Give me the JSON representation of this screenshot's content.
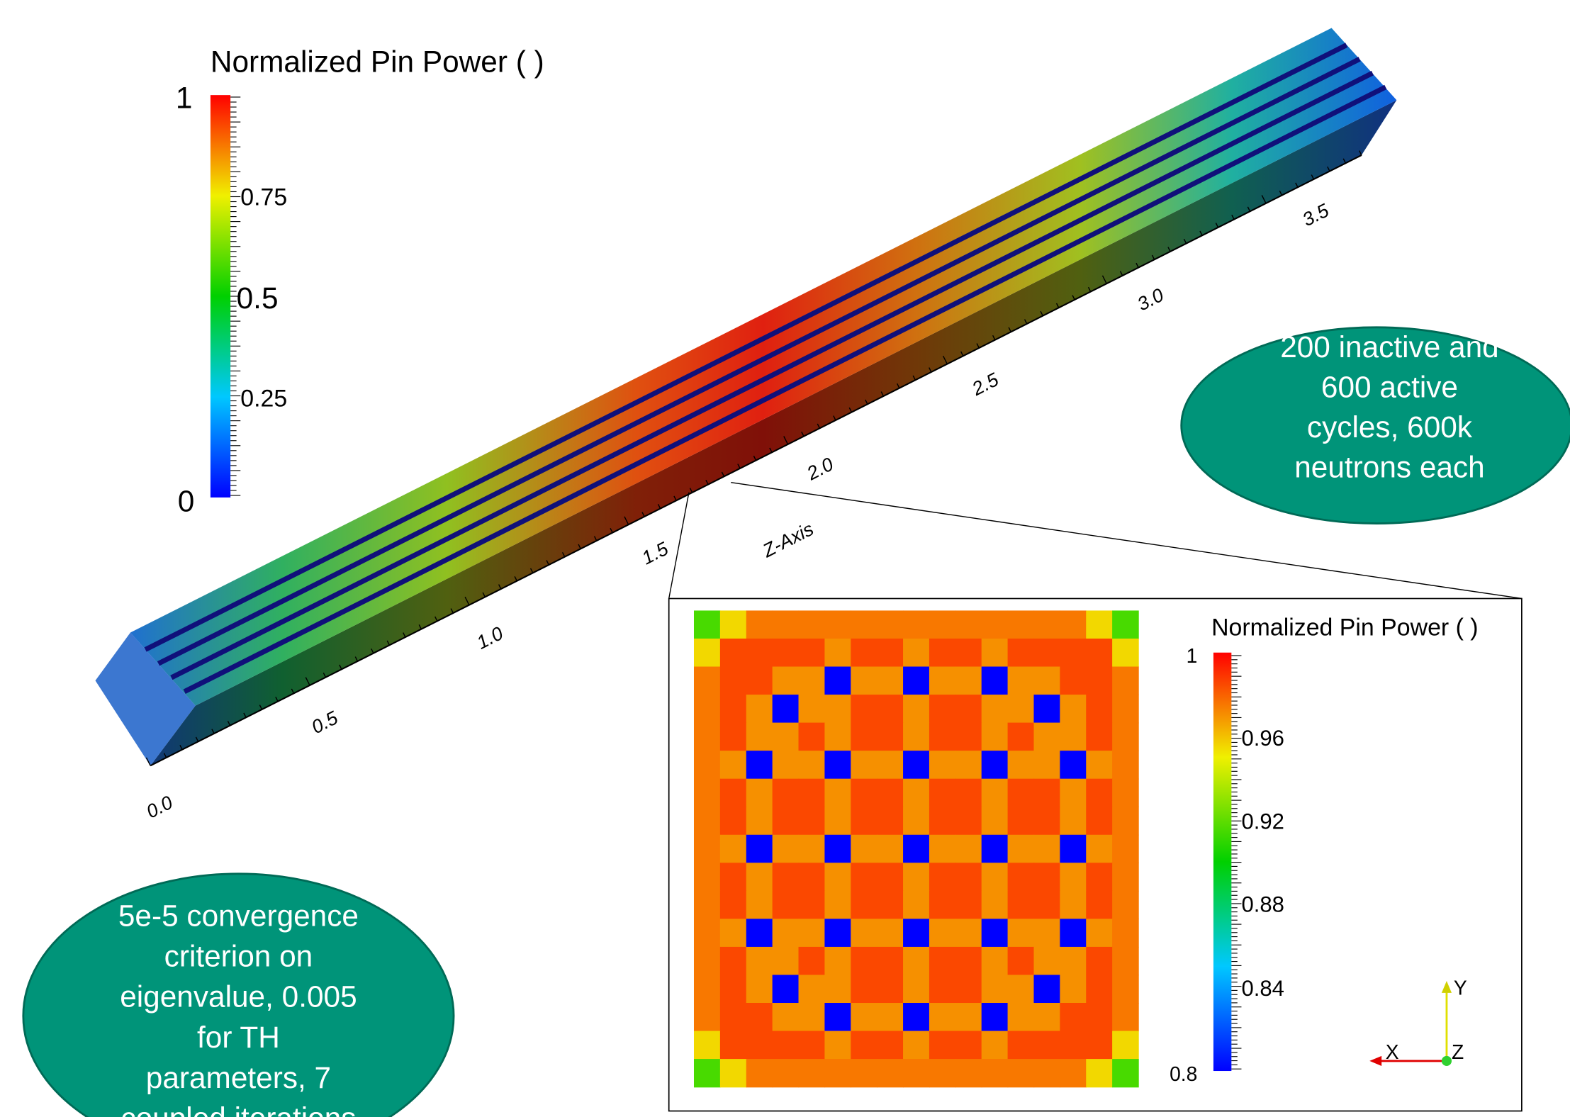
{
  "main_view": {
    "colorbar_title": "Normalized Pin Power ( )",
    "colorbar_labels": [
      "1",
      "0.75",
      "0.5",
      "0.25",
      "0"
    ],
    "axis_title": "Z-Axis",
    "axis_labels": [
      "0.0",
      "0.5",
      "1.0",
      "1.5",
      "2.0",
      "2.5",
      "3.0",
      "3.5"
    ]
  },
  "inset": {
    "colorbar_title": "Normalized Pin Power ( )",
    "colorbar_labels": [
      "1",
      "0.96",
      "0.92",
      "0.88",
      "0.84",
      "0.8"
    ],
    "axes_labels": [
      "Y",
      "X",
      "Z"
    ],
    "pin_map": [
      [
        0.915,
        0.955,
        0.975,
        0.975,
        0.975,
        0.975,
        0.975,
        0.975,
        0.975,
        0.975,
        0.975,
        0.975,
        0.975,
        0.975,
        0.975,
        0.955,
        0.915
      ],
      [
        0.955,
        0.985,
        0.985,
        0.985,
        0.985,
        0.97,
        0.985,
        0.985,
        0.97,
        0.985,
        0.985,
        0.97,
        0.985,
        0.985,
        0.985,
        0.985,
        0.955
      ],
      [
        0.975,
        0.985,
        0.985,
        0.97,
        0.97,
        0.8,
        0.97,
        0.97,
        0.8,
        0.97,
        0.97,
        0.8,
        0.97,
        0.97,
        0.985,
        0.985,
        0.975
      ],
      [
        0.975,
        0.985,
        0.97,
        0.8,
        0.97,
        0.97,
        0.985,
        0.985,
        0.97,
        0.985,
        0.985,
        0.97,
        0.97,
        0.8,
        0.97,
        0.985,
        0.975
      ],
      [
        0.975,
        0.985,
        0.97,
        0.97,
        0.985,
        0.97,
        0.985,
        0.985,
        0.97,
        0.985,
        0.985,
        0.97,
        0.985,
        0.97,
        0.97,
        0.985,
        0.975
      ],
      [
        0.975,
        0.97,
        0.8,
        0.97,
        0.97,
        0.8,
        0.97,
        0.97,
        0.8,
        0.97,
        0.97,
        0.8,
        0.97,
        0.97,
        0.8,
        0.97,
        0.975
      ],
      [
        0.975,
        0.985,
        0.97,
        0.985,
        0.985,
        0.97,
        0.985,
        0.985,
        0.97,
        0.985,
        0.985,
        0.97,
        0.985,
        0.985,
        0.97,
        0.985,
        0.975
      ],
      [
        0.975,
        0.985,
        0.97,
        0.985,
        0.985,
        0.97,
        0.985,
        0.985,
        0.97,
        0.985,
        0.985,
        0.97,
        0.985,
        0.985,
        0.97,
        0.985,
        0.975
      ],
      [
        0.975,
        0.97,
        0.8,
        0.97,
        0.97,
        0.8,
        0.97,
        0.97,
        0.8,
        0.97,
        0.97,
        0.8,
        0.97,
        0.97,
        0.8,
        0.97,
        0.975
      ],
      [
        0.975,
        0.985,
        0.97,
        0.985,
        0.985,
        0.97,
        0.985,
        0.985,
        0.97,
        0.985,
        0.985,
        0.97,
        0.985,
        0.985,
        0.97,
        0.985,
        0.975
      ],
      [
        0.975,
        0.985,
        0.97,
        0.985,
        0.985,
        0.97,
        0.985,
        0.985,
        0.97,
        0.985,
        0.985,
        0.97,
        0.985,
        0.985,
        0.97,
        0.985,
        0.975
      ],
      [
        0.975,
        0.97,
        0.8,
        0.97,
        0.97,
        0.8,
        0.97,
        0.97,
        0.8,
        0.97,
        0.97,
        0.8,
        0.97,
        0.97,
        0.8,
        0.97,
        0.975
      ],
      [
        0.975,
        0.985,
        0.97,
        0.97,
        0.985,
        0.97,
        0.985,
        0.985,
        0.97,
        0.985,
        0.985,
        0.97,
        0.985,
        0.97,
        0.97,
        0.985,
        0.975
      ],
      [
        0.975,
        0.985,
        0.97,
        0.8,
        0.97,
        0.97,
        0.985,
        0.985,
        0.97,
        0.985,
        0.985,
        0.97,
        0.97,
        0.8,
        0.97,
        0.985,
        0.975
      ],
      [
        0.975,
        0.985,
        0.985,
        0.97,
        0.97,
        0.8,
        0.97,
        0.97,
        0.8,
        0.97,
        0.97,
        0.8,
        0.97,
        0.97,
        0.985,
        0.985,
        0.975
      ],
      [
        0.955,
        0.985,
        0.985,
        0.985,
        0.985,
        0.97,
        0.985,
        0.985,
        0.97,
        0.985,
        0.985,
        0.97,
        0.985,
        0.985,
        0.985,
        0.985,
        0.955
      ],
      [
        0.915,
        0.955,
        0.975,
        0.975,
        0.975,
        0.975,
        0.975,
        0.975,
        0.975,
        0.975,
        0.975,
        0.975,
        0.975,
        0.975,
        0.975,
        0.955,
        0.915
      ]
    ],
    "pin_map_range": [
      0.8,
      1
    ]
  },
  "callouts": {
    "cycles": [
      "200 inactive and",
      "600 active",
      "cycles, 600k",
      "neutrons each"
    ],
    "convergence": [
      "5e-5 convergence",
      "criterion on",
      "eigenvalue, 0.005",
      "for TH",
      "parameters, 7",
      "coupled iterations"
    ]
  }
}
